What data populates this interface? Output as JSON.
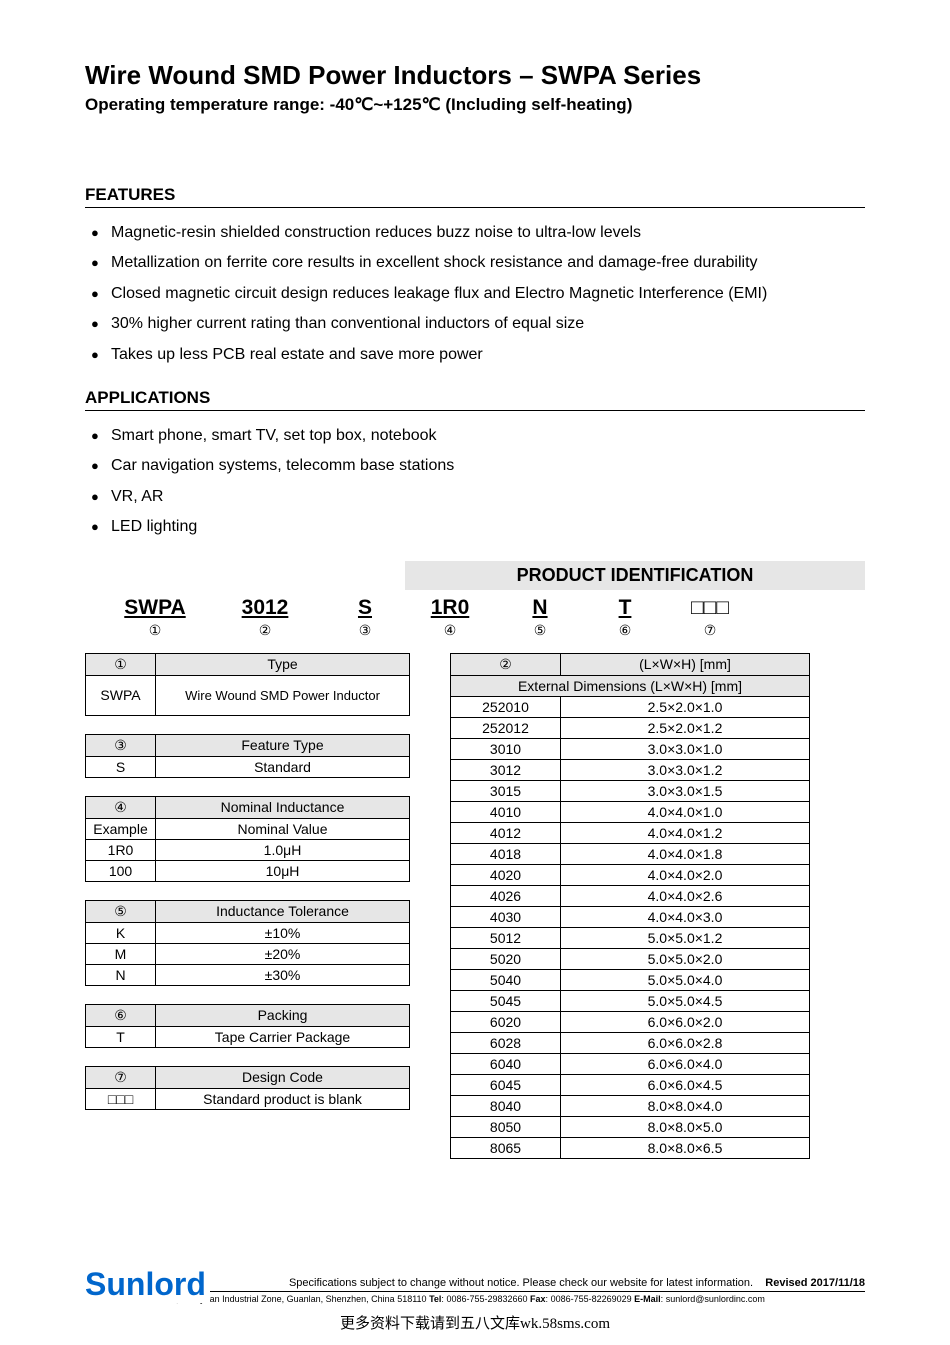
{
  "title": "Wire Wound SMD Power Inductors – SWPA Series",
  "subtitle": "Operating temperature range: -40℃~+125℃  (Including self-heating)",
  "features_header": "FEATURES",
  "features": [
    "Magnetic-resin shielded construction reduces buzz noise to ultra-low levels",
    "Metallization on ferrite core results in excellent shock resistance and damage-free durability",
    "Closed magnetic circuit design reduces leakage flux and Electro Magnetic Interference (EMI)",
    "30% higher current rating than conventional inductors of equal size",
    "Takes up less PCB real estate and save more power"
  ],
  "applications_header": "APPLICATIONS",
  "applications": [
    "Smart phone, smart TV, set top box, notebook",
    "Car navigation systems, telecomm base stations",
    "VR, AR",
    "LED lighting"
  ],
  "prod_id_header": "PRODUCT IDENTIFICATION",
  "code": {
    "c1": {
      "label": "SWPA",
      "num": "①"
    },
    "c2": {
      "label": "3012",
      "num": "②"
    },
    "c3": {
      "label": "S",
      "num": "③"
    },
    "c4": {
      "label": "1R0",
      "num": "④"
    },
    "c5": {
      "label": "N",
      "num": "⑤"
    },
    "c6": {
      "label": "T",
      "num": "⑥"
    },
    "c7": {
      "label": "□□□",
      "num": "⑦"
    }
  },
  "table_type": {
    "num": "①",
    "header": "Type",
    "row_label": "SWPA",
    "row_val": "Wire Wound SMD Power Inductor"
  },
  "table_feature": {
    "num": "③",
    "header": "Feature Type",
    "row_label": "S",
    "row_val": "Standard"
  },
  "table_inductance": {
    "num": "④",
    "header": "Nominal Inductance",
    "sub_label": "Example",
    "sub_val": "Nominal Value",
    "r1_label": "1R0",
    "r1_val": "1.0μH",
    "r2_label": "100",
    "r2_val": "10μH"
  },
  "table_tolerance": {
    "num": "⑤",
    "header": "Inductance Tolerance",
    "r1_label": "K",
    "r1_val": "±10%",
    "r2_label": "M",
    "r2_val": "±20%",
    "r3_label": "N",
    "r3_val": "±30%"
  },
  "table_packing": {
    "num": "⑥",
    "header": "Packing",
    "row_label": "T",
    "row_val": "Tape Carrier Package"
  },
  "table_design": {
    "num": "⑦",
    "header": "Design Code",
    "row_label": "□□□",
    "row_val": "Standard product is blank"
  },
  "table_dims": {
    "num": "②",
    "header1": "(L×W×H) [mm]",
    "header2": "External Dimensions (L×W×H) [mm]",
    "rows": [
      {
        "code": "252010",
        "dim": "2.5×2.0×1.0"
      },
      {
        "code": "252012",
        "dim": "2.5×2.0×1.2"
      },
      {
        "code": "3010",
        "dim": "3.0×3.0×1.0"
      },
      {
        "code": "3012",
        "dim": "3.0×3.0×1.2"
      },
      {
        "code": "3015",
        "dim": "3.0×3.0×1.5"
      },
      {
        "code": "4010",
        "dim": "4.0×4.0×1.0"
      },
      {
        "code": "4012",
        "dim": "4.0×4.0×1.2"
      },
      {
        "code": "4018",
        "dim": "4.0×4.0×1.8"
      },
      {
        "code": "4020",
        "dim": "4.0×4.0×2.0"
      },
      {
        "code": "4026",
        "dim": "4.0×4.0×2.6"
      },
      {
        "code": "4030",
        "dim": "4.0×4.0×3.0"
      },
      {
        "code": "5012",
        "dim": "5.0×5.0×1.2"
      },
      {
        "code": "5020",
        "dim": "5.0×5.0×2.0"
      },
      {
        "code": "5040",
        "dim": "5.0×5.0×4.0"
      },
      {
        "code": "5045",
        "dim": "5.0×5.0×4.5"
      },
      {
        "code": "6020",
        "dim": "6.0×6.0×2.0"
      },
      {
        "code": "6028",
        "dim": "6.0×6.0×2.8"
      },
      {
        "code": "6040",
        "dim": "6.0×6.0×4.0"
      },
      {
        "code": "6045",
        "dim": "6.0×6.0×4.5"
      },
      {
        "code": "8040",
        "dim": "8.0×8.0×4.0"
      },
      {
        "code": "8050",
        "dim": "8.0×8.0×5.0"
      },
      {
        "code": "8065",
        "dim": "8.0×8.0×6.5"
      }
    ]
  },
  "brand": "Sunlord",
  "disclaimer": "Specifications subject to change without notice. Please check our website for latest information.",
  "revised": "Revised 2017/11/18",
  "address": "Sunlord Industrial Park, Dafuyuan Industrial Zone, Guanlan, Shenzhen, China 518110",
  "tel_label": "Tel",
  "tel": "0086-755-29832660",
  "fax_label": "Fax",
  "fax": "0086-755-82269029",
  "email_label": "E-Mail",
  "email": "sunlord@sunlordinc.com",
  "page_bottom": "更多资料下载请到五八文库wk.58sms.com"
}
